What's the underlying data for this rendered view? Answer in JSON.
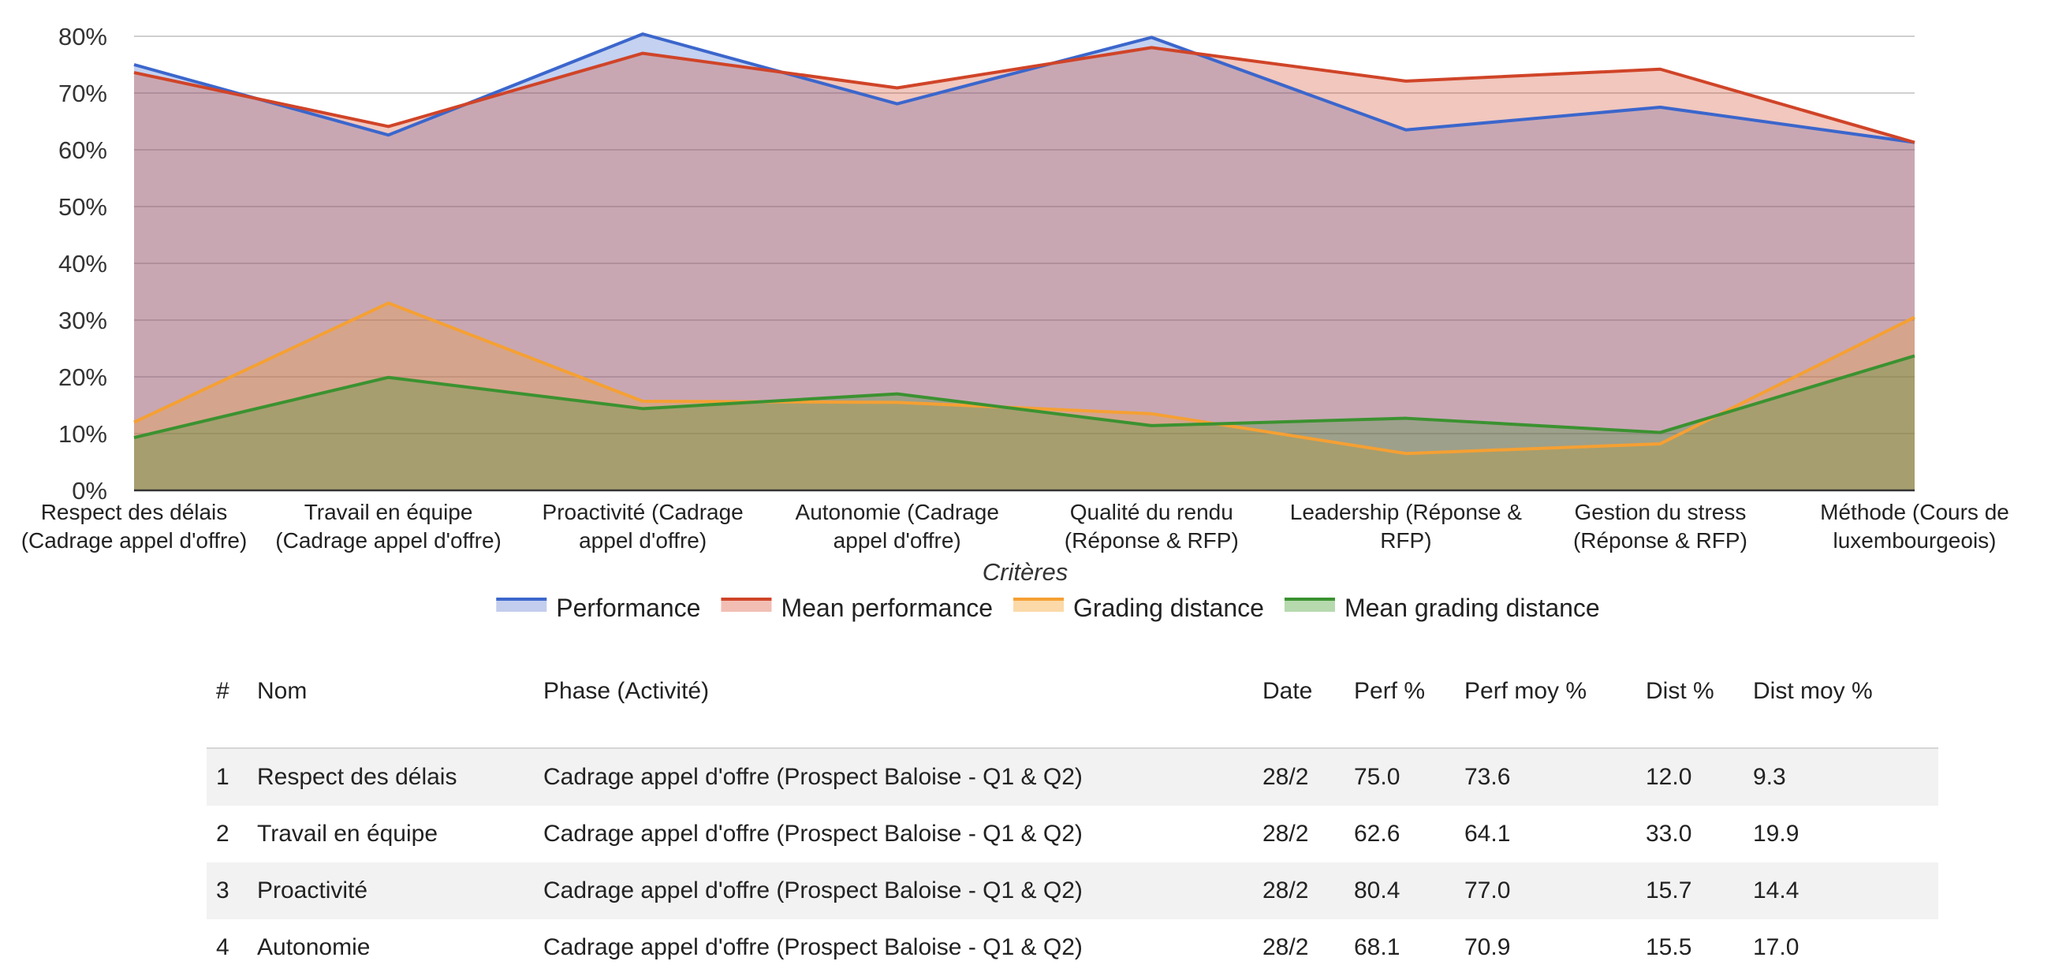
{
  "chart_data": {
    "type": "area",
    "xlabel": "Critères",
    "ylim": [
      0,
      80
    ],
    "y_ticks": [
      "0%",
      "10%",
      "20%",
      "30%",
      "40%",
      "50%",
      "60%",
      "70%",
      "80%"
    ],
    "grid": true,
    "legend_position": "bottom",
    "categories": [
      [
        "Respect des délais",
        "(Cadrage appel d'offre)"
      ],
      [
        "Travail en équipe",
        "(Cadrage appel d'offre)"
      ],
      [
        "Proactivité (Cadrage",
        "appel d'offre)"
      ],
      [
        "Autonomie (Cadrage",
        "appel d'offre)"
      ],
      [
        "Qualité du rendu",
        "(Réponse & RFP)"
      ],
      [
        "Leadership (Réponse &",
        "RFP)"
      ],
      [
        "Gestion du stress",
        "(Réponse & RFP)"
      ],
      [
        "Méthode (Cours de",
        "luxembourgeois)"
      ]
    ],
    "series": [
      {
        "name": "Performance",
        "color": "#3b66cc",
        "fill": "#c3cdee",
        "values": [
          75.0,
          62.6,
          80.4,
          68.1,
          79.8,
          63.5,
          67.5,
          61.3
        ]
      },
      {
        "name": "Mean performance",
        "color": "#d04428",
        "fill": "#f2beb4",
        "values": [
          73.6,
          64.1,
          77.0,
          70.9,
          78.0,
          72.1,
          74.2,
          61.3
        ]
      },
      {
        "name": "Grading distance",
        "color": "#f5a033",
        "fill": "#fbd9a8",
        "values": [
          12.0,
          33.0,
          15.7,
          15.5,
          13.5,
          6.5,
          8.2,
          30.5
        ]
      },
      {
        "name": "Mean grading distance",
        "color": "#3b9230",
        "fill": "#b6d9ae",
        "values": [
          9.3,
          19.9,
          14.4,
          17.0,
          11.4,
          12.7,
          10.2,
          23.7
        ]
      }
    ]
  },
  "table": {
    "headers": [
      "#",
      "Nom",
      "Phase (Activité)",
      "Date",
      "Perf %",
      "Perf moy %",
      "Dist %",
      "Dist moy %"
    ],
    "rows": [
      {
        "num": "1",
        "nom": "Respect des délais",
        "phase": "Cadrage appel d'offre (Prospect Baloise - Q1 & Q2)",
        "date": "28/2",
        "perf": "75.0",
        "perf_status": "good",
        "perf_moy": "73.6",
        "dist": "12.0",
        "dist_status": "bad",
        "dist_moy": "9.3"
      },
      {
        "num": "2",
        "nom": "Travail en équipe",
        "phase": "Cadrage appel d'offre (Prospect Baloise - Q1 & Q2)",
        "date": "28/2",
        "perf": "62.6",
        "perf_status": "bad",
        "perf_moy": "64.1",
        "dist": "33.0",
        "dist_status": "bad",
        "dist_moy": "19.9"
      },
      {
        "num": "3",
        "nom": "Proactivité",
        "phase": "Cadrage appel d'offre (Prospect Baloise - Q1 & Q2)",
        "date": "28/2",
        "perf": "80.4",
        "perf_status": "good",
        "perf_moy": "77.0",
        "dist": "15.7",
        "dist_status": "bad",
        "dist_moy": "14.4"
      },
      {
        "num": "4",
        "nom": "Autonomie",
        "phase": "Cadrage appel d'offre (Prospect Baloise - Q1 & Q2)",
        "date": "28/2",
        "perf": "68.1",
        "perf_status": "bad",
        "perf_moy": "70.9",
        "dist": "15.5",
        "dist_status": "good",
        "dist_moy": "17.0"
      }
    ]
  }
}
